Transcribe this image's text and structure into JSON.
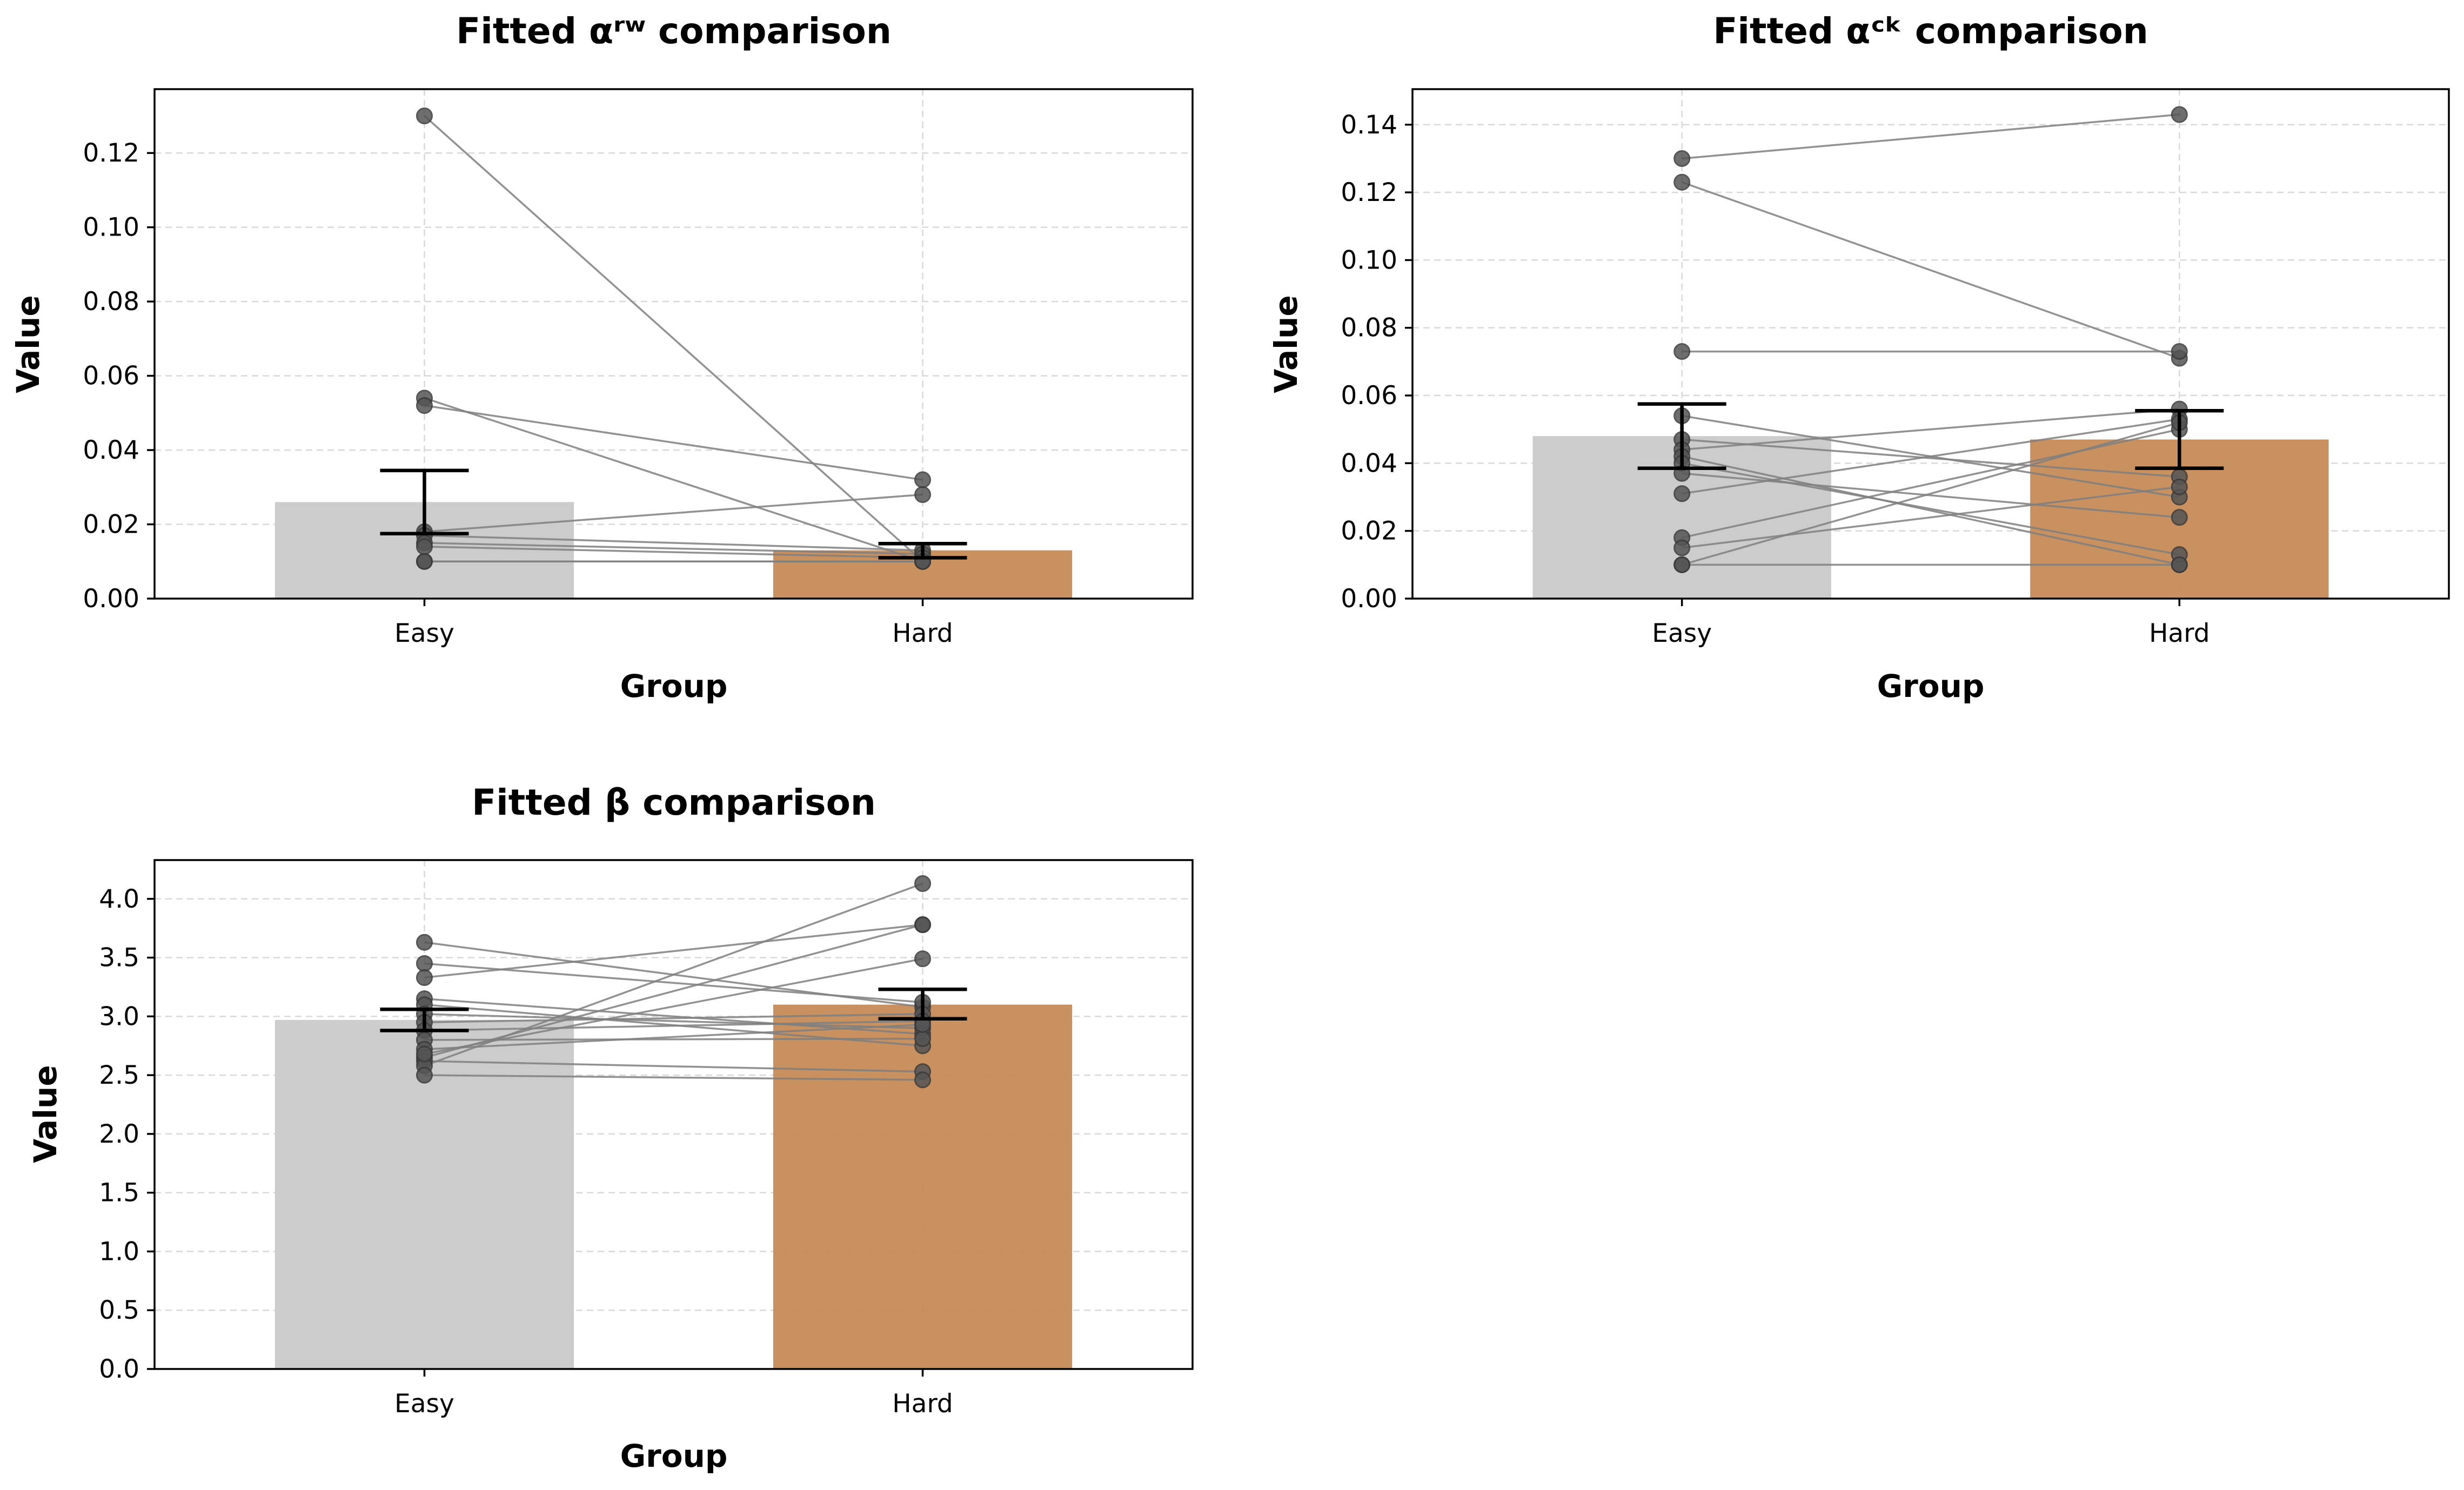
{
  "colors": {
    "easy_bar": "#cccccc",
    "hard_bar": "#c68b57",
    "dot": "#555555",
    "line": "#7f7f7f",
    "error": "#000000"
  },
  "chart_data": [
    {
      "type": "bar",
      "title": "Fitted αʳʷ comparison",
      "xlabel": "Group",
      "ylabel": "Value",
      "categories": [
        "Easy",
        "Hard"
      ],
      "values": [
        0.026,
        0.013
      ],
      "error_bars": [
        [
          0.0175,
          0.0345
        ],
        [
          0.011,
          0.0148
        ]
      ],
      "ylim": [
        0,
        0.1372
      ],
      "yticks": [
        0.0,
        0.02,
        0.04,
        0.06,
        0.08,
        0.1,
        0.12
      ],
      "ytick_labels": [
        "0.00",
        "0.02",
        "0.04",
        "0.06",
        "0.08",
        "0.10",
        "0.12"
      ],
      "grid": true,
      "paired": [
        [
          0.13,
          0.01
        ],
        [
          0.054,
          0.01
        ],
        [
          0.052,
          0.032
        ],
        [
          0.018,
          0.028
        ],
        [
          0.017,
          0.013
        ],
        [
          0.015,
          0.012
        ],
        [
          0.014,
          0.011
        ],
        [
          0.01,
          0.01
        ],
        [
          0.01,
          0.01
        ]
      ]
    },
    {
      "type": "bar",
      "title": "Fitted αᶜᵏ comparison",
      "xlabel": "Group",
      "ylabel": "Value",
      "categories": [
        "Easy",
        "Hard"
      ],
      "values": [
        0.048,
        0.047
      ],
      "error_bars": [
        [
          0.0385,
          0.0575
        ],
        [
          0.0385,
          0.0555
        ]
      ],
      "ylim": [
        0,
        0.1505
      ],
      "yticks": [
        0.0,
        0.02,
        0.04,
        0.06,
        0.08,
        0.1,
        0.12,
        0.14
      ],
      "ytick_labels": [
        "0.00",
        "0.02",
        "0.04",
        "0.06",
        "0.08",
        "0.10",
        "0.12",
        "0.14"
      ],
      "grid": true,
      "paired": [
        [
          0.13,
          0.143
        ],
        [
          0.123,
          0.071
        ],
        [
          0.073,
          0.073
        ],
        [
          0.054,
          0.03
        ],
        [
          0.047,
          0.036
        ],
        [
          0.044,
          0.056
        ],
        [
          0.042,
          0.01
        ],
        [
          0.04,
          0.013
        ],
        [
          0.037,
          0.024
        ],
        [
          0.031,
          0.053
        ],
        [
          0.018,
          0.05
        ],
        [
          0.015,
          0.033
        ],
        [
          0.01,
          0.052
        ],
        [
          0.01,
          0.01
        ]
      ]
    },
    {
      "type": "bar",
      "title": "Fitted β comparison",
      "xlabel": "Group",
      "ylabel": "Value",
      "categories": [
        "Easy",
        "Hard"
      ],
      "values": [
        2.97,
        3.1
      ],
      "error_bars": [
        [
          2.88,
          3.06
        ],
        [
          2.98,
          3.23
        ]
      ],
      "ylim": [
        0,
        4.33
      ],
      "yticks": [
        0.0,
        0.5,
        1.0,
        1.5,
        2.0,
        2.5,
        3.0,
        3.5,
        4.0
      ],
      "ytick_labels": [
        "0.0",
        "0.5",
        "1.0",
        "1.5",
        "2.0",
        "2.5",
        "3.0",
        "3.5",
        "4.0"
      ],
      "grid": true,
      "paired": [
        [
          3.63,
          3.08
        ],
        [
          3.45,
          3.12
        ],
        [
          3.33,
          3.78
        ],
        [
          3.15,
          2.85
        ],
        [
          3.1,
          2.75
        ],
        [
          3.02,
          2.9
        ],
        [
          2.95,
          3.02
        ],
        [
          2.88,
          2.96
        ],
        [
          2.8,
          2.81
        ],
        [
          2.72,
          2.93
        ],
        [
          2.65,
          3.78
        ],
        [
          2.62,
          2.53
        ],
        [
          2.58,
          4.13
        ],
        [
          2.5,
          2.46
        ],
        [
          2.68,
          3.49
        ]
      ]
    }
  ]
}
